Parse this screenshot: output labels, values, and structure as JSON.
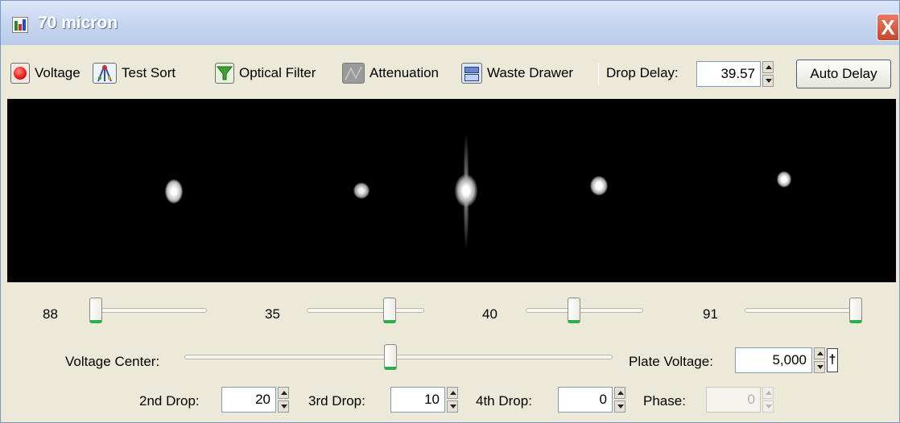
{
  "window": {
    "title": "70 micron",
    "close_label": "X",
    "icon": "app-icon"
  },
  "toolbar": {
    "voltage_label": "Voltage",
    "test_sort_label": "Test Sort",
    "optical_filter_label": "Optical Filter",
    "attenuation_label": "Attenuation",
    "waste_drawer_label": "Waste Drawer",
    "drop_delay_label": "Drop Delay:",
    "drop_delay_value": "39.57",
    "auto_delay_label": "Auto Delay",
    "icons": [
      "voltage-power-icon",
      "test-sort-icon",
      "optical-filter-icon",
      "attenuation-icon",
      "waste-drawer-icon"
    ],
    "voltage_icon_color": "#e8201a",
    "filter_icon_color": "#3fa030"
  },
  "sliders": [
    {
      "value_label": "88",
      "fraction": 0.0
    },
    {
      "value_label": "35",
      "fraction": 0.73
    },
    {
      "value_label": "40",
      "fraction": 0.4
    },
    {
      "value_label": "91",
      "fraction": 1.0
    }
  ],
  "voltage_center": {
    "label": "Voltage Center:",
    "fraction": 0.48
  },
  "plate_voltage": {
    "label": "Plate Voltage:",
    "value": "5,000",
    "toggle_label": "†"
  },
  "drops": {
    "second_label": "2nd Drop:",
    "second_value": "20",
    "third_label": "3rd Drop:",
    "third_value": "10",
    "fourth_label": "4th Drop:",
    "fourth_value": "0",
    "phase_label": "Phase:",
    "phase_value": "0"
  },
  "colors": {
    "slider_thumb_accent": "#2cae45",
    "title_bar": "#c9d8f0",
    "camera_background": "#000000"
  }
}
